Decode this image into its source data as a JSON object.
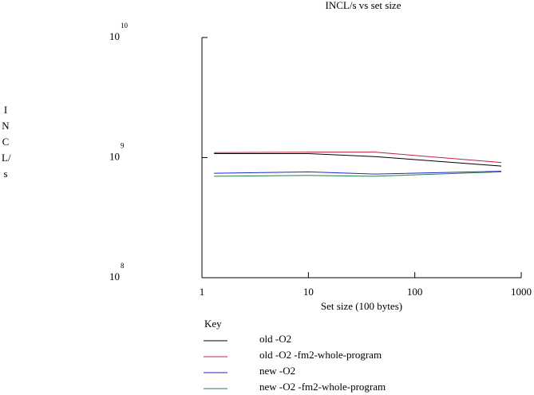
{
  "chart_data": {
    "type": "line",
    "title": "INCL/s vs set size",
    "x_label": "Set size (100 bytes)",
    "y_label": "INCL/s",
    "x_scale": "log",
    "y_scale": "log",
    "xlim": [
      1,
      1000
    ],
    "xticks": [
      1,
      10,
      100,
      1000
    ],
    "ylim": [
      100000000,
      10000000000
    ],
    "yticks": [
      {
        "value": 10000000000,
        "label": "10",
        "exponent": "10"
      },
      {
        "value": 1000000000,
        "label": "10",
        "exponent": "9"
      },
      {
        "value": 100000000,
        "label": "10",
        "exponent": "8"
      }
    ],
    "legend_title": "Key",
    "x": [
      1.3,
      10,
      42,
      650
    ],
    "series": [
      {
        "name": "old -O2",
        "color": "#000000",
        "values": [
          1080000000,
          1080000000,
          1020000000,
          850000000
        ]
      },
      {
        "name": "old -O2 -fm2-whole-program",
        "color": "#c0203c",
        "values": [
          1100000000,
          1110000000,
          1110000000,
          910000000
        ]
      },
      {
        "name": "new -O2",
        "color": "#2424c8",
        "values": [
          740000000,
          760000000,
          730000000,
          770000000
        ]
      },
      {
        "name": "new -O2 -fm2-whole-program",
        "color": "#208048",
        "values": [
          700000000,
          710000000,
          700000000,
          760000000
        ]
      }
    ]
  }
}
